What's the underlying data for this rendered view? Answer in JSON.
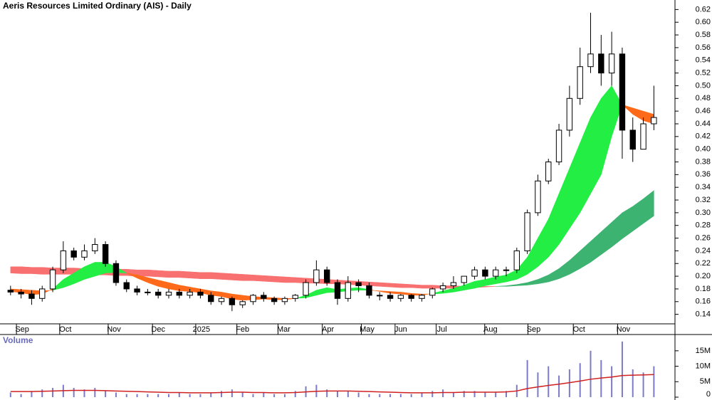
{
  "chart_data": {
    "type": "candlestick",
    "title": "Aeris Resources Limited Ordinary (AIS) - Daily",
    "x": [
      0,
      1,
      2,
      3,
      4,
      5,
      6,
      7,
      8,
      9,
      10,
      11,
      12,
      13,
      14,
      15,
      16,
      17,
      18,
      19,
      20,
      21,
      22,
      23,
      24,
      25,
      26,
      27,
      28,
      29,
      30,
      31,
      32,
      33,
      34,
      35,
      36,
      37,
      38,
      39,
      40,
      41,
      42,
      43,
      44,
      45,
      46,
      47,
      48,
      49,
      50,
      51,
      52,
      53,
      54,
      55,
      56,
      57,
      58,
      59,
      60,
      61
    ],
    "xlim": [
      -1,
      63
    ],
    "xticks": [
      {
        "value": 1.1,
        "label": "Sep"
      },
      {
        "value": 5.2,
        "label": "Oct"
      },
      {
        "value": 9.8,
        "label": "Nov"
      },
      {
        "value": 14,
        "label": "Dec"
      },
      {
        "value": 18.1,
        "label": "2025"
      },
      {
        "value": 22,
        "label": "Feb"
      },
      {
        "value": 25.9,
        "label": "Mar"
      },
      {
        "value": 30.1,
        "label": "Apr"
      },
      {
        "value": 33.8,
        "label": "May"
      },
      {
        "value": 37,
        "label": "Jun"
      },
      {
        "value": 40.9,
        "label": "Jul"
      },
      {
        "value": 45.5,
        "label": "Aug"
      },
      {
        "value": 49.6,
        "label": "Sep"
      },
      {
        "value": 53.9,
        "label": "Oct"
      },
      {
        "value": 58.1,
        "label": "Nov"
      }
    ],
    "ylim": [
      0.125,
      0.635
    ],
    "yticks": [
      0.14,
      0.16,
      0.18,
      {
        "value": 0.2,
        "label": "0.20"
      },
      0.22,
      0.24,
      0.26,
      0.28,
      {
        "value": 0.3,
        "label": "0.30"
      },
      0.32,
      0.34,
      0.36,
      0.38,
      {
        "value": 0.4,
        "label": "0.40"
      },
      0.42,
      0.44,
      0.46,
      0.48,
      {
        "value": 0.5,
        "label": "0.50"
      },
      0.52,
      0.54,
      0.56,
      0.58,
      {
        "value": 0.6,
        "label": "0.60"
      },
      0.62
    ],
    "open": [
      0.178,
      0.175,
      0.172,
      0.165,
      0.18,
      0.21,
      0.24,
      0.23,
      0.24,
      0.25,
      0.22,
      0.19,
      0.18,
      0.175,
      0.175,
      0.17,
      0.175,
      0.17,
      0.175,
      0.17,
      0.16,
      0.165,
      0.155,
      0.16,
      0.17,
      0.165,
      0.16,
      0.165,
      0.17,
      0.19,
      0.21,
      0.19,
      0.165,
      0.19,
      0.185,
      0.17,
      0.17,
      0.165,
      0.17,
      0.165,
      0.17,
      0.18,
      0.185,
      0.19,
      0.2,
      0.21,
      0.2,
      0.21,
      0.21,
      0.24,
      0.3,
      0.35,
      0.38,
      0.43,
      0.48,
      0.53,
      0.55,
      0.52,
      0.55,
      0.43,
      0.4,
      0.44
    ],
    "high": [
      0.185,
      0.18,
      0.178,
      0.185,
      0.215,
      0.255,
      0.245,
      0.25,
      0.26,
      0.255,
      0.225,
      0.195,
      0.185,
      0.18,
      0.18,
      0.18,
      0.18,
      0.18,
      0.18,
      0.175,
      0.168,
      0.168,
      0.162,
      0.172,
      0.175,
      0.168,
      0.168,
      0.172,
      0.195,
      0.225,
      0.215,
      0.195,
      0.2,
      0.195,
      0.19,
      0.175,
      0.175,
      0.172,
      0.172,
      0.172,
      0.182,
      0.19,
      0.2,
      0.2,
      0.215,
      0.215,
      0.215,
      0.215,
      0.245,
      0.305,
      0.36,
      0.385,
      0.44,
      0.5,
      0.56,
      0.615,
      0.58,
      0.585,
      0.56,
      0.45,
      0.45,
      0.5
    ],
    "low": [
      0.17,
      0.165,
      0.155,
      0.16,
      0.175,
      0.205,
      0.225,
      0.225,
      0.235,
      0.215,
      0.185,
      0.175,
      0.17,
      0.17,
      0.165,
      0.165,
      0.165,
      0.165,
      0.165,
      0.155,
      0.155,
      0.145,
      0.15,
      0.155,
      0.16,
      0.155,
      0.155,
      0.16,
      0.165,
      0.185,
      0.185,
      0.155,
      0.16,
      0.175,
      0.165,
      0.162,
      0.16,
      0.16,
      0.16,
      0.16,
      0.165,
      0.175,
      0.18,
      0.185,
      0.195,
      0.195,
      0.195,
      0.2,
      0.205,
      0.235,
      0.295,
      0.345,
      0.375,
      0.42,
      0.47,
      0.52,
      0.5,
      0.5,
      0.385,
      0.38,
      0.4,
      0.43
    ],
    "close": [
      0.175,
      0.172,
      0.165,
      0.18,
      0.21,
      0.24,
      0.23,
      0.24,
      0.25,
      0.22,
      0.19,
      0.18,
      0.175,
      0.175,
      0.17,
      0.175,
      0.17,
      0.175,
      0.17,
      0.16,
      0.165,
      0.155,
      0.16,
      0.17,
      0.165,
      0.16,
      0.165,
      0.17,
      0.19,
      0.21,
      0.19,
      0.165,
      0.19,
      0.185,
      0.17,
      0.17,
      0.165,
      0.17,
      0.165,
      0.17,
      0.18,
      0.185,
      0.19,
      0.2,
      0.21,
      0.2,
      0.21,
      0.21,
      0.24,
      0.3,
      0.35,
      0.38,
      0.43,
      0.48,
      0.53,
      0.55,
      0.52,
      0.55,
      0.43,
      0.4,
      0.44,
      0.45
    ],
    "up_color": "#ffffff",
    "down_color": "#000000",
    "bands": [
      {
        "up_color": "#3cb371",
        "down_color": "#f87070",
        "fast": [
          0.205,
          0.204,
          0.204,
          0.203,
          0.203,
          0.203,
          0.203,
          0.202,
          0.202,
          0.202,
          0.201,
          0.201,
          0.2,
          0.2,
          0.199,
          0.198,
          0.198,
          0.197,
          0.196,
          0.196,
          0.195,
          0.194,
          0.193,
          0.193,
          0.192,
          0.191,
          0.19,
          0.19,
          0.189,
          0.189,
          0.188,
          0.188,
          0.187,
          0.186,
          0.185,
          0.184,
          0.183,
          0.182,
          0.182,
          0.181,
          0.181,
          0.181,
          0.181,
          0.182,
          0.182,
          0.183,
          0.184,
          0.185,
          0.187,
          0.19,
          0.195,
          0.202,
          0.212,
          0.225,
          0.24,
          0.255,
          0.27,
          0.285,
          0.3,
          0.31,
          0.322,
          0.335
        ],
        "slow": [
          0.215,
          0.215,
          0.214,
          0.214,
          0.213,
          0.213,
          0.213,
          0.212,
          0.212,
          0.212,
          0.211,
          0.211,
          0.21,
          0.21,
          0.209,
          0.208,
          0.208,
          0.207,
          0.206,
          0.206,
          0.205,
          0.204,
          0.203,
          0.202,
          0.201,
          0.2,
          0.199,
          0.198,
          0.197,
          0.196,
          0.195,
          0.194,
          0.193,
          0.192,
          0.191,
          0.19,
          0.189,
          0.188,
          0.187,
          0.186,
          0.186,
          0.185,
          0.185,
          0.184,
          0.184,
          0.184,
          0.184,
          0.184,
          0.185,
          0.186,
          0.188,
          0.191,
          0.196,
          0.203,
          0.212,
          0.222,
          0.234,
          0.246,
          0.259,
          0.271,
          0.283,
          0.295
        ]
      },
      {
        "up_color": "#22ee44",
        "down_color": "#ff6a1a",
        "fast": [
          0.176,
          0.174,
          0.171,
          0.172,
          0.18,
          0.195,
          0.205,
          0.215,
          0.222,
          0.222,
          0.215,
          0.205,
          0.197,
          0.19,
          0.184,
          0.18,
          0.177,
          0.176,
          0.174,
          0.17,
          0.168,
          0.164,
          0.162,
          0.163,
          0.164,
          0.163,
          0.163,
          0.165,
          0.17,
          0.178,
          0.182,
          0.179,
          0.181,
          0.182,
          0.179,
          0.176,
          0.173,
          0.172,
          0.17,
          0.17,
          0.173,
          0.177,
          0.181,
          0.186,
          0.192,
          0.195,
          0.199,
          0.202,
          0.21,
          0.23,
          0.26,
          0.29,
          0.33,
          0.37,
          0.41,
          0.45,
          0.48,
          0.5,
          0.47,
          0.455,
          0.445,
          0.44
        ],
        "slow": [
          0.18,
          0.179,
          0.178,
          0.177,
          0.178,
          0.182,
          0.188,
          0.195,
          0.2,
          0.205,
          0.206,
          0.205,
          0.202,
          0.198,
          0.194,
          0.19,
          0.186,
          0.183,
          0.18,
          0.177,
          0.175,
          0.172,
          0.17,
          0.168,
          0.167,
          0.166,
          0.165,
          0.165,
          0.166,
          0.17,
          0.174,
          0.175,
          0.177,
          0.178,
          0.178,
          0.177,
          0.176,
          0.175,
          0.173,
          0.172,
          0.172,
          0.173,
          0.175,
          0.178,
          0.181,
          0.185,
          0.188,
          0.191,
          0.195,
          0.203,
          0.215,
          0.23,
          0.25,
          0.275,
          0.3,
          0.33,
          0.36,
          0.42,
          0.47,
          0.465,
          0.46,
          0.455
        ]
      }
    ],
    "volume": {
      "title": "Volume",
      "color": "#7b7bc8",
      "ma_color": "#d02020",
      "ylim": [
        0,
        19800000
      ],
      "yticks": [
        0,
        {
          "value": 5000000,
          "label": "5M"
        },
        {
          "value": 10000000,
          "label": "10M"
        },
        {
          "value": 15000000,
          "label": "15M"
        }
      ],
      "values": [
        1500000,
        1000000,
        2000000,
        2500000,
        3000000,
        4000000,
        3000000,
        2500000,
        3000000,
        2000000,
        1500000,
        1000000,
        1000000,
        1000000,
        1000000,
        1000000,
        1500000,
        1000000,
        1000000,
        1500000,
        2000000,
        2500000,
        1500000,
        1000000,
        1500000,
        1000000,
        1000000,
        2000000,
        3500000,
        4000000,
        2500000,
        2000000,
        2000000,
        1500000,
        1000000,
        1000000,
        1000000,
        1000000,
        1000000,
        1500000,
        2000000,
        2500000,
        1500000,
        2000000,
        2000000,
        1500000,
        1500000,
        2000000,
        4000000,
        12000000,
        8000000,
        10000000,
        7000000,
        9000000,
        11000000,
        15000000,
        12000000,
        10000000,
        18000000,
        9000000,
        8000000,
        10000000
      ],
      "ma": [
        1800000,
        1800000,
        1800000,
        1900000,
        2000000,
        2100000,
        2200000,
        2200000,
        2200000,
        2100000,
        2000000,
        1900000,
        1800000,
        1700000,
        1600000,
        1500000,
        1500000,
        1400000,
        1400000,
        1400000,
        1500000,
        1600000,
        1600000,
        1500000,
        1500000,
        1400000,
        1400000,
        1500000,
        1700000,
        1900000,
        2000000,
        2000000,
        2000000,
        1900000,
        1800000,
        1700000,
        1600000,
        1500000,
        1400000,
        1400000,
        1400000,
        1500000,
        1500000,
        1600000,
        1600000,
        1600000,
        1600000,
        1700000,
        2000000,
        2800000,
        3300000,
        3800000,
        4200000,
        4700000,
        5200000,
        5800000,
        6200000,
        6500000,
        7000000,
        7100000,
        7200000,
        7300000
      ]
    }
  }
}
